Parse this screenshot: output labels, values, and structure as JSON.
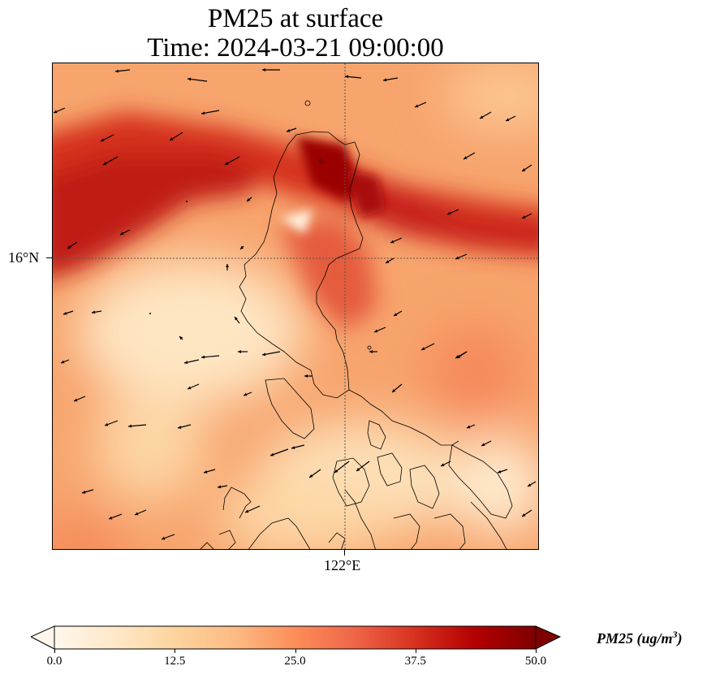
{
  "title": {
    "line1": "PM25 at surface",
    "line2": "Time: 2024-03-21 09:00:00"
  },
  "map": {
    "lat_tick": "16°N",
    "lon_tick": "122°E",
    "gridline_color": "#555555",
    "coastline_color": "#000000"
  },
  "colorbar": {
    "label_text": "PM25 (ug/m",
    "label_exponent": "3",
    "label_close": ")",
    "min": 0.0,
    "max": 50.0,
    "ticks": [
      "0.0",
      "12.5",
      "25.0",
      "37.5",
      "50.0"
    ],
    "colormap": "OrRd",
    "colors": [
      "#fff7ec",
      "#fee8c8",
      "#fdd49e",
      "#fdbb84",
      "#fc8d59",
      "#ef6548",
      "#d7301f",
      "#b30000",
      "#7f0000"
    ],
    "extend": "both"
  },
  "chart_data": {
    "type": "heatmap",
    "variable": "PM25",
    "units": "ug/m3",
    "level": "surface",
    "time": "2024-03-21 09:00:00",
    "colormap": "OrRd",
    "value_range": [
      0.0,
      50.0
    ],
    "lat_gridline": "16°N",
    "lon_gridline": "122°E",
    "overlays": [
      "coastlines",
      "wind vectors"
    ],
    "features": [
      {
        "region": "band across north of map",
        "level": "high",
        "approx_ug_m3": 40
      },
      {
        "region": "northern Luzon interior west",
        "level": "low",
        "approx_ug_m3": 5
      },
      {
        "region": "west of Luzon (open sea)",
        "level": "low",
        "approx_ug_m3": 8
      },
      {
        "region": "southeast islands",
        "level": "low-moderate",
        "approx_ug_m3": 10
      },
      {
        "region": "east sea",
        "level": "moderate",
        "approx_ug_m3": 25
      }
    ]
  }
}
